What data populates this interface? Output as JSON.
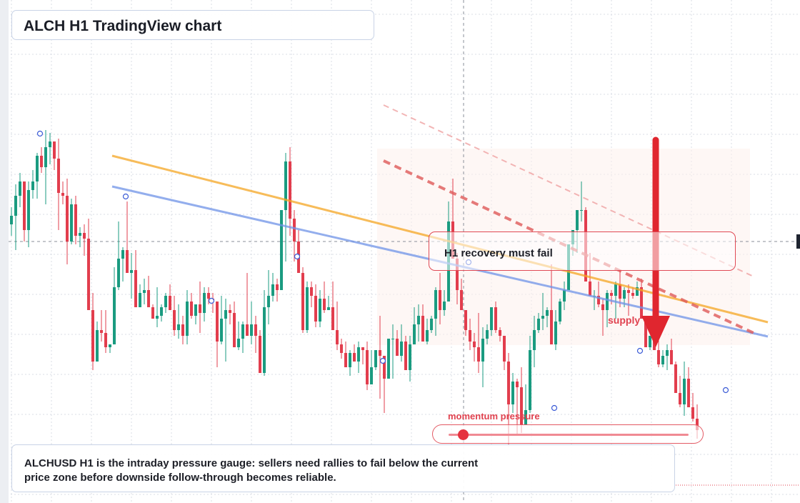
{
  "title": "ALCH H1 TradingView chart",
  "chart_data": {
    "type": "candlestick",
    "symbol": "ALCHUSD",
    "timeframe": "H1",
    "price_axis_visible": false,
    "grid": true,
    "series": [
      {
        "name": "candles",
        "values": [
          [
            0.6,
            1.2,
            0.2,
            0.9
          ],
          [
            0.9,
            2.0,
            -0.3,
            1.6
          ],
          [
            1.6,
            2.4,
            1.2,
            2.1
          ],
          [
            2.1,
            2.1,
            0.0,
            0.4
          ],
          [
            0.4,
            2.1,
            -0.2,
            1.8
          ],
          [
            1.8,
            2.5,
            1.5,
            2.1
          ],
          [
            2.1,
            3.1,
            1.5,
            3.0
          ],
          [
            3.0,
            3.3,
            2.4,
            2.6
          ],
          [
            2.6,
            3.9,
            1.3,
            3.3
          ],
          [
            3.3,
            3.8,
            2.7,
            3.5
          ],
          [
            3.5,
            3.5,
            2.5,
            2.9
          ],
          [
            2.9,
            3.6,
            0.4,
            1.7
          ],
          [
            1.7,
            2.1,
            1.3,
            1.6
          ],
          [
            1.6,
            2.2,
            -0.8,
            0.0
          ],
          [
            0.0,
            1.5,
            -0.1,
            1.3
          ],
          [
            1.3,
            1.6,
            -0.1,
            0.2
          ],
          [
            0.2,
            0.5,
            -0.2,
            0.3
          ],
          [
            0.3,
            0.6,
            -0.5,
            0.1
          ],
          [
            0.1,
            0.8,
            -1.3,
            -2.4
          ],
          [
            -2.4,
            -1.8,
            -4.5,
            -4.2
          ],
          [
            -4.2,
            -2.8,
            -4.2,
            -3.1
          ],
          [
            -3.1,
            -2.4,
            -3.5,
            -3.2
          ],
          [
            -3.2,
            -2.4,
            -3.9,
            -3.7
          ],
          [
            -3.7,
            -3.7,
            -3.9,
            -3.6
          ],
          [
            -3.6,
            -0.9,
            -3.6,
            -1.6
          ],
          [
            -1.6,
            0.7,
            -1.7,
            -0.6
          ],
          [
            -0.6,
            -0.2,
            -1.4,
            -0.3
          ],
          [
            -0.3,
            1.4,
            -0.6,
            -1.1
          ],
          [
            -1.1,
            -0.4,
            -2.0,
            -1.0
          ],
          [
            -1.0,
            -0.3,
            -1.9,
            -2.3
          ],
          [
            -2.3,
            -1.5,
            -2.3,
            -1.8
          ],
          [
            -1.8,
            -1.3,
            -2.2,
            -1.7
          ],
          [
            -1.7,
            -1.2,
            -2.0,
            -2.3
          ],
          [
            -2.3,
            -2.2,
            -2.4,
            -2.7
          ],
          [
            -2.7,
            -1.6,
            -3.0,
            -2.6
          ],
          [
            -2.6,
            -2.2,
            -2.8,
            -2.3
          ],
          [
            -2.3,
            -1.8,
            -2.5,
            -1.9
          ],
          [
            -1.9,
            -1.5,
            -2.3,
            -2.4
          ],
          [
            -2.4,
            -1.9,
            -3.3,
            -3.1
          ],
          [
            -3.1,
            -2.2,
            -3.4,
            -2.9
          ],
          [
            -2.9,
            -2.6,
            -3.6,
            -3.3
          ],
          [
            -3.3,
            -1.7,
            -3.6,
            -2.1
          ],
          [
            -2.1,
            -1.8,
            -2.7,
            -2.6
          ],
          [
            -2.6,
            -2.2,
            -2.9,
            -2.2
          ],
          [
            -2.2,
            -1.4,
            -3.2,
            -2.5
          ],
          [
            -2.5,
            -1.6,
            -2.8,
            -1.8
          ],
          [
            -1.8,
            -1.6,
            -2.2,
            -2.0
          ],
          [
            -2.0,
            -1.8,
            -2.5,
            -2.1
          ],
          [
            -2.1,
            -2.1,
            -4.4,
            -3.5
          ],
          [
            -3.5,
            -1.9,
            -3.6,
            -2.7
          ],
          [
            -2.7,
            -2.0,
            -4.2,
            -2.4
          ],
          [
            -2.4,
            -2.2,
            -2.9,
            -2.5
          ],
          [
            -2.5,
            -2.1,
            -3.7,
            -3.7
          ],
          [
            -3.7,
            -2.8,
            -3.8,
            -3.4
          ],
          [
            -3.4,
            -2.8,
            -3.9,
            -2.9
          ],
          [
            -2.9,
            -1.1,
            -3.0,
            -3.3
          ],
          [
            -3.3,
            -2.1,
            -3.6,
            -2.9
          ],
          [
            -2.9,
            -2.6,
            -3.9,
            -3.3
          ],
          [
            -3.3,
            -3.1,
            -4.6,
            -4.6
          ],
          [
            -4.6,
            -1.7,
            -4.7,
            -2.3
          ],
          [
            -2.3,
            -1.0,
            -2.9,
            -1.9
          ],
          [
            -1.9,
            -1.1,
            -2.1,
            -1.5
          ],
          [
            -1.5,
            -1.3,
            -2.1,
            -1.7
          ],
          [
            -1.7,
            -0.7,
            -1.7,
            1.1
          ],
          [
            1.1,
            3.1,
            -0.7,
            2.8
          ],
          [
            2.8,
            3.3,
            0.2,
            0.8
          ],
          [
            0.8,
            1.1,
            -0.7,
            0.0
          ],
          [
            0.0,
            0.4,
            -0.5,
            -1.1
          ],
          [
            -1.1,
            -0.9,
            -3.2,
            -3.1
          ],
          [
            -3.1,
            -1.4,
            -3.2,
            -1.6
          ],
          [
            -1.6,
            -1.4,
            -2.3,
            -1.9
          ],
          [
            -1.9,
            -1.5,
            -3.0,
            -2.8
          ],
          [
            -2.8,
            -1.7,
            -3.0,
            -2.0
          ],
          [
            -2.0,
            -1.4,
            -2.5,
            -2.4
          ],
          [
            -2.4,
            -1.9,
            -2.4,
            -2.3
          ],
          [
            -2.3,
            -1.4,
            -3.1,
            -3.1
          ],
          [
            -3.1,
            -2.1,
            -3.8,
            -3.6
          ],
          [
            -3.6,
            -3.4,
            -4.1,
            -3.9
          ],
          [
            -3.9,
            -3.5,
            -4.3,
            -4.4
          ],
          [
            -4.4,
            -3.8,
            -4.7,
            -3.9
          ],
          [
            -3.9,
            -3.6,
            -4.0,
            -4.2
          ],
          [
            -4.2,
            -3.5,
            -4.6,
            -3.7
          ],
          [
            -3.7,
            -3.7,
            -4.3,
            -3.8
          ],
          [
            -3.8,
            -3.5,
            -5.2,
            -5.0
          ],
          [
            -5.0,
            -3.8,
            -5.0,
            -4.4
          ],
          [
            -4.4,
            -3.8,
            -4.5,
            -3.8
          ],
          [
            -3.8,
            -2.6,
            -5.5,
            -4.0
          ],
          [
            -4.0,
            -4.0,
            -6.0,
            -4.8
          ],
          [
            -4.8,
            -3.4,
            -4.8,
            -3.4
          ],
          [
            -3.4,
            -2.9,
            -4.8,
            -3.4
          ],
          [
            -3.4,
            -3.1,
            -3.8,
            -4.0
          ],
          [
            -4.0,
            -2.9,
            -4.2,
            -3.5
          ],
          [
            -3.5,
            -3.3,
            -4.5,
            -4.5
          ],
          [
            -4.5,
            -3.3,
            -4.9,
            -3.6
          ],
          [
            -3.6,
            -2.3,
            -3.6,
            -2.9
          ],
          [
            -2.9,
            -2.2,
            -3.5,
            -2.6
          ],
          [
            -2.6,
            -2.2,
            -3.3,
            -3.5
          ],
          [
            -3.5,
            -2.7,
            -3.6,
            -3.1
          ],
          [
            -3.1,
            -2.6,
            -3.2,
            -2.7
          ],
          [
            -2.7,
            -1.6,
            -3.3,
            -1.7
          ],
          [
            -1.7,
            -1.1,
            -2.9,
            -2.4
          ],
          [
            -2.4,
            -1.7,
            -2.6,
            -2.1
          ],
          [
            -2.1,
            1.4,
            -2.1,
            0.7
          ],
          [
            0.7,
            2.2,
            0.3,
            -0.6
          ],
          [
            -0.6,
            -0.4,
            -2.2,
            -1.7
          ],
          [
            -1.7,
            -1.3,
            -2.4,
            -2.4
          ],
          [
            -2.4,
            -2.4,
            -3.3,
            -3.1
          ],
          [
            -3.1,
            -2.7,
            -3.8,
            -3.5
          ],
          [
            -3.5,
            -3.2,
            -4.2,
            -3.7
          ],
          [
            -3.7,
            -2.5,
            -4.6,
            -4.2
          ],
          [
            -4.2,
            -3.0,
            -5.1,
            -3.4
          ],
          [
            -3.4,
            -2.9,
            -3.6,
            -3.1
          ],
          [
            -3.1,
            -2.5,
            -3.3,
            -2.3
          ],
          [
            -2.3,
            -2.1,
            -3.2,
            -3.1
          ],
          [
            -3.1,
            -3.0,
            -3.5,
            -3.3
          ],
          [
            -3.3,
            -3.3,
            -4.5,
            -4.2
          ],
          [
            -4.2,
            -3.9,
            -7.2,
            -5.7
          ],
          [
            -5.7,
            -4.6,
            -6.0,
            -4.9
          ],
          [
            -4.9,
            -4.8,
            -6.8,
            -5.1
          ],
          [
            -5.1,
            -4.4,
            -6.7,
            -6.4
          ],
          [
            -6.4,
            -5.0,
            -6.4,
            -5.9
          ],
          [
            -5.9,
            -3.3,
            -6.0,
            -3.8
          ],
          [
            -3.8,
            -2.6,
            -4.4,
            -3.1
          ],
          [
            -3.1,
            -2.5,
            -3.2,
            -2.7
          ],
          [
            -2.7,
            -1.8,
            -3.1,
            -2.6
          ],
          [
            -2.6,
            -2.3,
            -3.0,
            -2.4
          ],
          [
            -2.4,
            -0.8,
            -3.2,
            -3.6
          ],
          [
            -3.6,
            -2.4,
            -3.8,
            -2.8
          ],
          [
            -2.8,
            -2.0,
            -2.9,
            -2.1
          ],
          [
            -2.1,
            -1.4,
            -2.4,
            -1.7
          ],
          [
            -1.7,
            -0.5,
            -1.7,
            -0.1
          ],
          [
            -0.1,
            0.2,
            -0.5,
            0.4
          ],
          [
            0.4,
            0.5,
            -0.4,
            1.1
          ],
          [
            1.1,
            2.1,
            0.7,
            1.1
          ],
          [
            1.1,
            1.2,
            -0.8,
            -1.4
          ],
          [
            -1.4,
            -0.4,
            -1.7,
            -1.9
          ],
          [
            -1.9,
            -1.7,
            -2.4,
            -1.9
          ],
          [
            -1.9,
            -1.4,
            -2.3,
            -2.2
          ],
          [
            -2.2,
            -2.0,
            -3.3,
            -2.4
          ],
          [
            -2.4,
            -1.7,
            -3.0,
            -1.8
          ],
          [
            -1.8,
            -1.7,
            -2.2,
            -1.9
          ],
          [
            -1.9,
            -1.4,
            -2.7,
            -1.5
          ],
          [
            -1.5,
            -1.0,
            -2.3,
            -2.0
          ],
          [
            -2.0,
            -1.6,
            -2.3,
            -1.7
          ],
          [
            -1.7,
            -1.5,
            -2.6,
            -1.8
          ],
          [
            -1.8,
            -1.6,
            -2.0,
            -1.9
          ],
          [
            -1.9,
            -1.4,
            -1.9,
            -1.6
          ],
          [
            -1.6,
            -1.3,
            -2.2,
            -2.7
          ],
          [
            -2.7,
            -2.6,
            -3.2,
            -3.7
          ],
          [
            -3.7,
            -3.3,
            -3.8,
            -3.3
          ],
          [
            -3.3,
            -2.9,
            -3.7,
            -3.8
          ],
          [
            -3.8,
            -3.4,
            -4.4,
            -4.3
          ],
          [
            -4.3,
            -3.8,
            -4.4,
            -4.0
          ],
          [
            -4.0,
            -3.6,
            -4.5,
            -3.8
          ],
          [
            -3.8,
            -3.4,
            -4.2,
            -4.3
          ],
          [
            -4.3,
            -4.2,
            -5.0,
            -5.3
          ],
          [
            -5.3,
            -4.7,
            -5.8,
            -5.7
          ],
          [
            -5.7,
            -4.2,
            -6.1,
            -4.8
          ],
          [
            -4.8,
            -4.4,
            -5.7,
            -5.8
          ],
          [
            -5.8,
            -5.3,
            -6.3,
            -6.2
          ],
          [
            -6.2,
            -5.7,
            -6.9,
            -6.6
          ]
        ]
      }
    ],
    "trendlines": [
      {
        "color": "#f5a623",
        "style": "solid"
      },
      {
        "color": "#6f93e8",
        "style": "solid"
      },
      {
        "color": "#e05a5a",
        "style": "dashed"
      },
      {
        "color": "#f0a3a3",
        "style": "dashed"
      }
    ],
    "colors": {
      "up": "#1a9b80",
      "down": "#e23d4d",
      "grid": "#d8dce4",
      "crosshair": "#8a8f99"
    }
  },
  "annotations": {
    "note": "H1 recovery must fail",
    "supply_label": "supply",
    "gauge_label": "momentum pressure",
    "gauge_level": 0.06
  },
  "footer": "ALCHUSD H1 is the intraday pressure gauge: sellers need rallies to fail below the current price zone before downside follow-through becomes reliable."
}
